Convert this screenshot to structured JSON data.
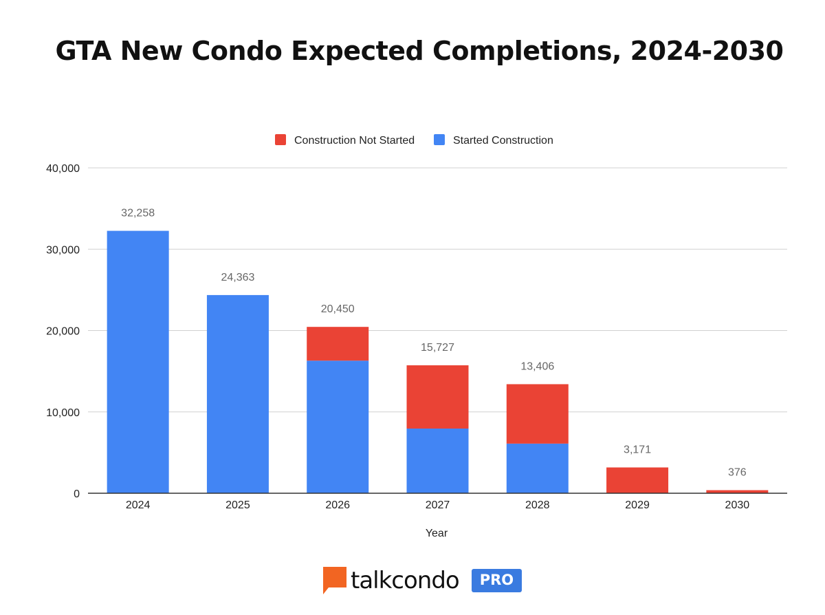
{
  "chart_data": {
    "type": "bar",
    "stacked": true,
    "title": "GTA New Condo Expected Completions, 2024-2030",
    "xlabel": "Year",
    "ylabel": "",
    "ylim": [
      0,
      40000
    ],
    "y_ticks": [
      0,
      10000,
      20000,
      30000,
      40000
    ],
    "y_tick_labels": [
      "0",
      "10,000",
      "20,000",
      "30,000",
      "40,000"
    ],
    "grid": true,
    "legend_position": "top-center",
    "categories": [
      "2024",
      "2025",
      "2026",
      "2027",
      "2028",
      "2029",
      "2030"
    ],
    "series": [
      {
        "name": "Started Construction",
        "color": "#4285f4",
        "values": [
          32258,
          24363,
          16300,
          7950,
          6100,
          0,
          0
        ]
      },
      {
        "name": "Construction Not Started",
        "color": "#ea4335",
        "values": [
          0,
          0,
          4150,
          7777,
          7306,
          3171,
          376
        ]
      }
    ],
    "totals": [
      32258,
      24363,
      20450,
      15727,
      13406,
      3171,
      376
    ],
    "total_labels": [
      "32,258",
      "24,363",
      "20,450",
      "15,727",
      "13,406",
      "3,171",
      "376"
    ],
    "legend": [
      {
        "name": "Construction Not Started",
        "color": "#ea4335"
      },
      {
        "name": "Started Construction",
        "color": "#4285f4"
      }
    ]
  },
  "brand": {
    "name": "talkcondo",
    "badge": "PRO",
    "logo_icon": "talkcondo-logo-icon",
    "logo_color": "#f26522",
    "badge_color": "#3a7be0"
  }
}
